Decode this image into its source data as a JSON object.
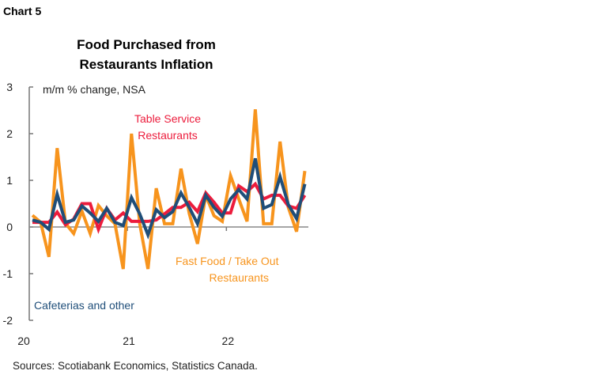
{
  "chart_label": "Chart 5",
  "chart_data": {
    "type": "line",
    "title": "Food Purchased from Restaurants Inflation",
    "ylabel": "m/m % change, NSA",
    "ylim": [
      -2,
      3
    ],
    "yticks": [
      -2,
      -1,
      0,
      1,
      2,
      3
    ],
    "xticks": [
      {
        "index": 0,
        "label": "20"
      },
      {
        "index": 12,
        "label": "21"
      },
      {
        "index": 24,
        "label": "22"
      }
    ],
    "grid": false,
    "series": [
      {
        "name": "Fast Food / Take Out Restaurants",
        "color": "#F7941D",
        "values": [
          0.25,
          0.1,
          -0.64,
          1.69,
          0.08,
          -0.14,
          0.34,
          -0.14,
          0.46,
          0.24,
          0.07,
          -0.9,
          2.0,
          0.07,
          -0.9,
          0.83,
          0.07,
          0.07,
          1.25,
          0.29,
          -0.36,
          0.68,
          0.24,
          0.12,
          1.1,
          0.6,
          0.12,
          2.52,
          0.07,
          0.07,
          1.83,
          0.42,
          -0.1,
          1.2
        ]
      },
      {
        "name": "Table Service Restaurants",
        "color": "#EC1C3C",
        "values": [
          0.1,
          0.1,
          0.1,
          0.32,
          0.05,
          0.17,
          0.5,
          0.5,
          -0.05,
          0.4,
          0.15,
          0.3,
          0.12,
          0.12,
          0.12,
          0.15,
          0.28,
          0.42,
          0.42,
          0.53,
          0.33,
          0.73,
          0.53,
          0.3,
          0.3,
          0.88,
          0.76,
          0.92,
          0.6,
          0.68,
          0.68,
          0.45,
          0.4,
          0.68
        ]
      },
      {
        "name": "Cafeterias and other",
        "color": "#1F4E79",
        "values": [
          0.15,
          0.1,
          -0.05,
          0.7,
          0.1,
          0.15,
          0.45,
          0.3,
          0.12,
          0.4,
          0.1,
          0.03,
          0.63,
          0.28,
          -0.17,
          0.37,
          0.2,
          0.33,
          0.73,
          0.42,
          0.07,
          0.68,
          0.42,
          0.23,
          0.6,
          0.8,
          0.6,
          1.47,
          0.4,
          0.48,
          1.08,
          0.48,
          0.18,
          0.92
        ]
      }
    ],
    "annotations": {
      "table_service": [
        "Table Service",
        "Restaurants"
      ],
      "fast_food": [
        "Fast Food / Take Out",
        "Restaurants"
      ],
      "cafeterias": "Cafeterias and other"
    }
  },
  "source": "Sources: Scotiabank Economics, Statistics Canada."
}
